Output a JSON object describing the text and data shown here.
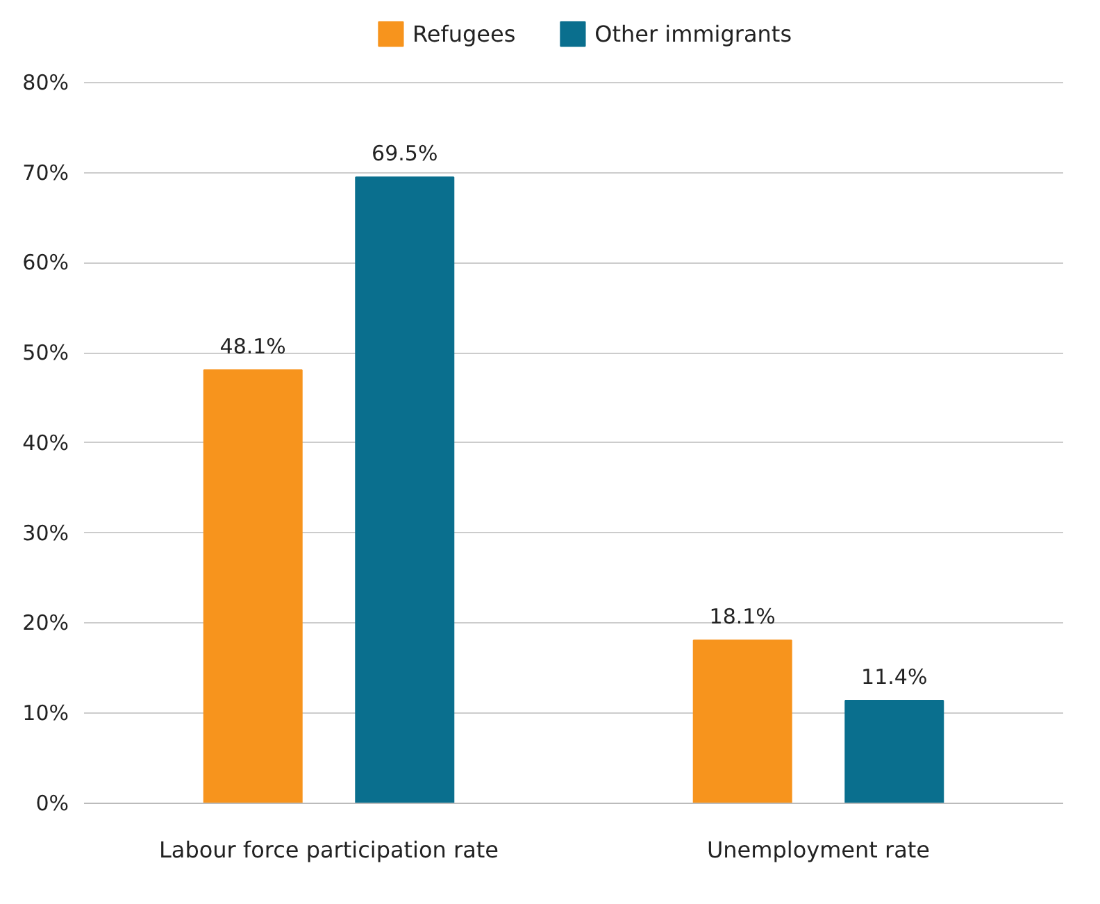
{
  "chart_data": {
    "type": "bar",
    "categories": [
      "Labour force participation rate",
      "Unemployment rate"
    ],
    "series": [
      {
        "name": "Refugees",
        "color": "#f7941d",
        "values": [
          48.1,
          18.1
        ],
        "value_labels": [
          "48.1%",
          "18.1%"
        ]
      },
      {
        "name": "Other immigrants",
        "color": "#0a6f8e",
        "values": [
          69.5,
          11.4
        ],
        "value_labels": [
          "69.5%",
          "11.4%"
        ]
      }
    ],
    "ylim": [
      0,
      80
    ],
    "yticks": [
      {
        "value": 0,
        "label": "0%"
      },
      {
        "value": 10,
        "label": "10%"
      },
      {
        "value": 20,
        "label": "20%"
      },
      {
        "value": 30,
        "label": "30%"
      },
      {
        "value": 40,
        "label": "40%"
      },
      {
        "value": 50,
        "label": "50%"
      },
      {
        "value": 60,
        "label": "60%"
      },
      {
        "value": 70,
        "label": "70%"
      },
      {
        "value": 80,
        "label": "80%"
      }
    ],
    "grid": "y",
    "legend": "top"
  }
}
